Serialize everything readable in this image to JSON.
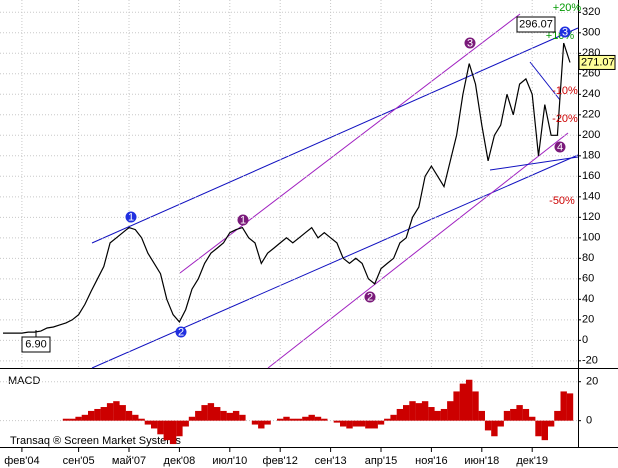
{
  "chart_data": [
    {
      "type": "line",
      "categories": [
        null,
        null,
        null,
        "фев'04",
        null,
        null,
        null,
        null,
        null,
        null,
        null,
        null,
        "сен'05",
        null,
        null,
        null,
        null,
        null,
        null,
        null,
        "май'07",
        null,
        null,
        null,
        null,
        null,
        null,
        null,
        "дек'08",
        null,
        null,
        null,
        null,
        null,
        null,
        null,
        "июл'10",
        null,
        null,
        null,
        null,
        null,
        null,
        null,
        "фев'12",
        null,
        null,
        null,
        null,
        null,
        null,
        null,
        "сен'13",
        null,
        null,
        null,
        null,
        null,
        null,
        null,
        "апр'15",
        null,
        null,
        null,
        null,
        null,
        null,
        null,
        "ноя'16",
        null,
        null,
        null,
        null,
        null,
        null,
        null,
        "июн'18",
        null,
        null,
        null,
        null,
        null,
        null,
        null,
        "дек'19",
        null,
        null,
        null,
        null,
        null,
        null
      ],
      "series": [
        {
          "color": "#000000",
          "values": [
            7,
            7,
            7,
            7,
            8,
            8,
            9,
            12,
            13,
            15,
            17,
            20,
            25,
            35,
            48,
            60,
            72,
            95,
            100,
            105,
            110,
            108,
            100,
            85,
            75,
            65,
            40,
            25,
            18,
            30,
            50,
            60,
            75,
            85,
            90,
            95,
            105,
            108,
            110,
            100,
            95,
            75,
            85,
            90,
            95,
            100,
            95,
            100,
            105,
            110,
            100,
            105,
            100,
            95,
            80,
            75,
            80,
            75,
            60,
            55,
            70,
            75,
            80,
            95,
            100,
            120,
            130,
            160,
            170,
            160,
            150,
            175,
            200,
            240,
            270,
            250,
            210,
            175,
            200,
            210,
            240,
            220,
            250,
            255,
            240,
            180,
            230,
            200,
            200,
            290,
            271.07
          ]
        }
      ],
      "ylim": [
        -27,
        332
      ],
      "yticks": [
        -20,
        0,
        20,
        40,
        60,
        80,
        100,
        120,
        140,
        160,
        180,
        200,
        220,
        240,
        260,
        280,
        300,
        320
      ],
      "grid": true,
      "high_label": 296.07,
      "low_label": {
        "value": 6.9,
        "label": "6.90"
      },
      "level_labels": [
        {
          "text": "+20%",
          "color": "#009900"
        },
        {
          "text": "+10%",
          "color": "#009900"
        },
        {
          "text": "-10%",
          "color": "#cc0000"
        },
        {
          "text": "-20%",
          "color": "#cc0000"
        },
        {
          "text": "-50%",
          "color": "#cc0000"
        }
      ],
      "wave_labels": [
        {
          "text": "1",
          "color": "#2030e0"
        },
        {
          "text": "2",
          "color": "#2030e0"
        },
        {
          "text": "3",
          "color": "#2030e0"
        },
        {
          "text": "1",
          "color": "#7a1a7a"
        },
        {
          "text": "2",
          "color": "#7a1a7a"
        },
        {
          "text": "3",
          "color": "#7a1a7a"
        },
        {
          "text": "4",
          "color": "#7a1a7a"
        }
      ],
      "footer": "Transaq ® Screen Market Systems"
    },
    {
      "type": "bar",
      "title": "MACD",
      "color": "#cc0000",
      "values": [
        0,
        0,
        0,
        0,
        0,
        0,
        0,
        0,
        0,
        0,
        1,
        1,
        2,
        3,
        5,
        6,
        7,
        9,
        10,
        8,
        5,
        3,
        1,
        -2,
        -4,
        -7,
        -10,
        -12,
        -8,
        -3,
        2,
        5,
        8,
        9,
        7,
        5,
        4,
        5,
        3,
        0,
        -2,
        -4,
        -2,
        0,
        1,
        2,
        1,
        1,
        2,
        3,
        2,
        1,
        0,
        -1,
        -3,
        -4,
        -3,
        -3,
        -4,
        -4,
        -2,
        1,
        3,
        6,
        8,
        10,
        9,
        10,
        7,
        5,
        6,
        10,
        15,
        19,
        21,
        15,
        5,
        -5,
        -8,
        -3,
        5,
        6,
        8,
        6,
        2,
        -8,
        -10,
        -3,
        5,
        15,
        14
      ],
      "ylim": [
        -13,
        26
      ],
      "yticks": [
        0,
        20
      ]
    }
  ]
}
